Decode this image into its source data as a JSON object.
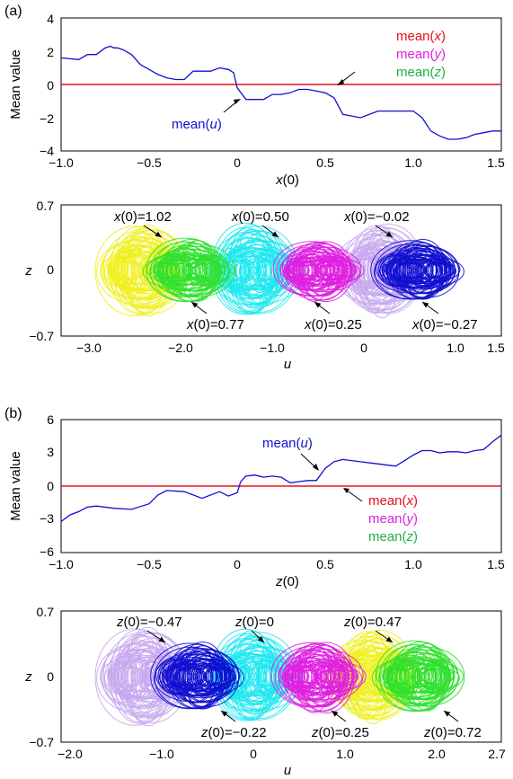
{
  "colors": {
    "u": "#1010d0",
    "x": "#e8101a",
    "y": "#e020e0",
    "z": "#20b040",
    "cyan": "#20e8f0",
    "yellow": "#f0f020",
    "green": "#30e030",
    "lavender": "#c8a8ee",
    "axis": "#000000"
  },
  "chart_data": [
    {
      "panel": "(a)",
      "type": "line",
      "ylabel": "Mean value",
      "xlabel_var": "x",
      "xlabel_arg": "(0)",
      "xlim": [
        -1.0,
        1.5
      ],
      "ylim": [
        -4,
        4
      ],
      "xticks": [
        "−1.0",
        "−0.5",
        "0",
        "0.5",
        "1.0",
        "1.5"
      ],
      "xtick_values": [
        -1.0,
        -0.5,
        0,
        0.5,
        1.0,
        1.5
      ],
      "yticks": [
        "4",
        "2",
        "0",
        "−2",
        "−4"
      ],
      "ytick_values": [
        4,
        2,
        0,
        -2,
        -4
      ],
      "series": [
        {
          "name": "mean(u)",
          "color_key": "u",
          "x": [
            -1.0,
            -0.9,
            -0.85,
            -0.8,
            -0.75,
            -0.72,
            -0.7,
            -0.68,
            -0.65,
            -0.6,
            -0.55,
            -0.5,
            -0.45,
            -0.4,
            -0.35,
            -0.3,
            -0.25,
            -0.2,
            -0.15,
            -0.1,
            -0.05,
            -0.02,
            0.0,
            0.05,
            0.1,
            0.15,
            0.2,
            0.25,
            0.3,
            0.35,
            0.4,
            0.45,
            0.5,
            0.55,
            0.6,
            0.7,
            0.8,
            0.9,
            1.0,
            1.05,
            1.1,
            1.15,
            1.2,
            1.25,
            1.3,
            1.35,
            1.4,
            1.45,
            1.5
          ],
          "y": [
            1.6,
            1.5,
            1.8,
            1.8,
            2.2,
            2.3,
            2.2,
            2.2,
            2.1,
            1.8,
            1.2,
            0.9,
            0.6,
            0.4,
            0.3,
            0.3,
            0.8,
            0.8,
            0.8,
            1.0,
            0.9,
            0.7,
            -0.2,
            -0.9,
            -0.9,
            -0.9,
            -0.6,
            -0.6,
            -0.5,
            -0.3,
            -0.3,
            -0.4,
            -0.5,
            -0.8,
            -1.8,
            -2.0,
            -1.6,
            -1.6,
            -1.6,
            -2.0,
            -2.8,
            -3.1,
            -3.3,
            -3.3,
            -3.2,
            -3.0,
            -2.9,
            -2.8,
            -2.8
          ]
        },
        {
          "name": "mean(x)",
          "color_key": "x",
          "x": [
            -1.0,
            1.5
          ],
          "y": [
            0,
            0
          ]
        },
        {
          "name": "mean(y)",
          "color_key": "y",
          "x": [
            -1.0,
            1.5
          ],
          "y": [
            0,
            0
          ]
        },
        {
          "name": "mean(z)",
          "color_key": "z",
          "x": [
            -1.0,
            1.5
          ],
          "y": [
            0,
            0
          ]
        }
      ],
      "annotations": {
        "mean_u": "mean(u)",
        "mean_x": "mean(x)",
        "mean_y": "mean(y)",
        "mean_z": "mean(z)"
      }
    },
    {
      "panel": "(a) bottom",
      "type": "scatter",
      "xlabel": "u",
      "ylabel": "z",
      "xlim": [
        -3.3,
        1.5
      ],
      "ylim": [
        -0.7,
        0.7
      ],
      "xticks": [
        "−3.0",
        "−2.0",
        "−1.0",
        "0",
        "1.0",
        "1.5"
      ],
      "xtick_values": [
        -3.0,
        -2.0,
        -1.0,
        0,
        1.0,
        1.5
      ],
      "yticks": [
        "0.7",
        "0",
        "−0.7"
      ],
      "ytick_values": [
        0.7,
        0,
        -0.7
      ],
      "attractors": [
        {
          "label": "x(0)=1.02",
          "color_key": "yellow",
          "center_u": -2.4
        },
        {
          "label": "x(0)=0.77",
          "color_key": "green",
          "center_u": -1.9
        },
        {
          "label": "x(0)=0.50",
          "color_key": "cyan",
          "center_u": -1.2
        },
        {
          "label": "x(0)=0.25",
          "color_key": "y",
          "center_u": -0.5
        },
        {
          "label": "x(0)=−0.02",
          "color_key": "lavender",
          "center_u": 0.2
        },
        {
          "label": "x(0)=−0.27",
          "color_key": "u",
          "center_u": 0.6
        }
      ]
    },
    {
      "panel": "(b)",
      "type": "line",
      "ylabel": "Mean value",
      "xlabel_var": "z",
      "xlabel_arg": "(0)",
      "xlim": [
        -1.0,
        1.5
      ],
      "ylim": [
        -6,
        6
      ],
      "xticks": [
        "−1.0",
        "−0.5",
        "0",
        "0.5",
        "1.0",
        "1.5"
      ],
      "xtick_values": [
        -1.0,
        -0.5,
        0,
        0.5,
        1.0,
        1.5
      ],
      "yticks": [
        "6",
        "3",
        "0",
        "−3",
        "−6"
      ],
      "ytick_values": [
        6,
        3,
        0,
        -3,
        -6
      ],
      "series": [
        {
          "name": "mean(u)",
          "color_key": "u",
          "x": [
            -1.0,
            -0.95,
            -0.9,
            -0.85,
            -0.8,
            -0.7,
            -0.6,
            -0.5,
            -0.45,
            -0.4,
            -0.3,
            -0.2,
            -0.1,
            -0.05,
            0.0,
            0.02,
            0.05,
            0.1,
            0.15,
            0.2,
            0.25,
            0.3,
            0.35,
            0.4,
            0.45,
            0.5,
            0.55,
            0.6,
            0.7,
            0.8,
            0.9,
            1.0,
            1.05,
            1.1,
            1.15,
            1.2,
            1.25,
            1.3,
            1.35,
            1.4,
            1.45,
            1.5
          ],
          "y": [
            -3.2,
            -2.6,
            -2.3,
            -1.9,
            -1.8,
            -2.0,
            -2.1,
            -1.6,
            -0.8,
            -0.4,
            -0.5,
            -1.1,
            -0.5,
            -0.9,
            -0.6,
            0.4,
            0.9,
            1.0,
            0.8,
            0.9,
            0.8,
            0.3,
            0.4,
            0.5,
            0.5,
            1.6,
            2.2,
            2.4,
            2.2,
            2.0,
            1.8,
            2.8,
            3.2,
            3.2,
            3.0,
            3.1,
            3.1,
            3.0,
            3.2,
            3.3,
            4.0,
            4.6
          ]
        },
        {
          "name": "mean(x)",
          "color_key": "x",
          "x": [
            -1.0,
            1.5
          ],
          "y": [
            0,
            0
          ]
        },
        {
          "name": "mean(y)",
          "color_key": "y",
          "x": [
            -1.0,
            1.5
          ],
          "y": [
            0,
            0
          ]
        },
        {
          "name": "mean(z)",
          "color_key": "z",
          "x": [
            -1.0,
            1.5
          ],
          "y": [
            0,
            0
          ]
        }
      ],
      "annotations": {
        "mean_u": "mean(u)",
        "mean_x": "mean(x)",
        "mean_y": "mean(y)",
        "mean_z": "mean(z)"
      }
    },
    {
      "panel": "(b) bottom",
      "type": "scatter",
      "xlabel": "u",
      "ylabel": "z",
      "xlim": [
        -2.1,
        2.7
      ],
      "ylim": [
        -0.7,
        0.7
      ],
      "xticks": [
        "−2.0",
        "−1.0",
        "0",
        "1.0",
        "2.0",
        "2.7"
      ],
      "xtick_values": [
        -2.0,
        -1.0,
        0,
        1.0,
        2.0,
        2.7
      ],
      "yticks": [
        "0.7",
        "0",
        "−0.7"
      ],
      "ytick_values": [
        0.7,
        0,
        -0.7
      ],
      "attractors": [
        {
          "label": "z(0)=−0.47",
          "color_key": "u",
          "center_u": -0.6
        },
        {
          "label": "z(0)=−0.22",
          "color_key": "lavender",
          "center_u": -1.2
        },
        {
          "label": "z(0)=0",
          "color_key": "cyan",
          "center_u": 0.0
        },
        {
          "label": "z(0)=0.25",
          "color_key": "y",
          "center_u": 0.7
        },
        {
          "label": "z(0)=0.47",
          "color_key": "yellow",
          "center_u": 1.3
        },
        {
          "label": "z(0)=0.72",
          "color_key": "green",
          "center_u": 1.8
        }
      ]
    }
  ]
}
